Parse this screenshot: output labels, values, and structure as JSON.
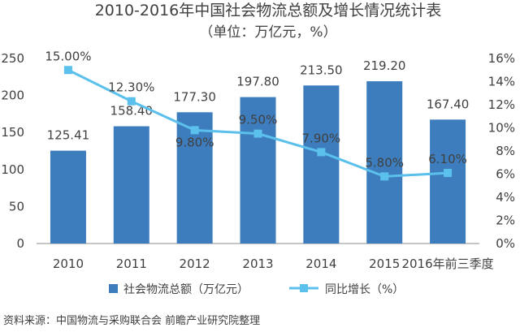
{
  "chart_data": {
    "type": "bar",
    "title": "2010-2016年中国社会物流总额及增长情况统计表",
    "subtitle": "（单位：万亿元，%）",
    "categories": [
      "2010",
      "2011",
      "2012",
      "2013",
      "2014",
      "2015",
      "2016年前三季度"
    ],
    "series": [
      {
        "name": "社会物流总额（万亿元）",
        "type": "bar",
        "axis": "left",
        "values": [
          125.41,
          158.4,
          177.3,
          197.8,
          213.5,
          219.2,
          167.4
        ],
        "labels": [
          "125.41",
          "158.40",
          "177.30",
          "197.80",
          "213.50",
          "219.20",
          "167.40"
        ]
      },
      {
        "name": "同比增长（%）",
        "type": "line",
        "axis": "right",
        "values": [
          15.0,
          12.3,
          9.8,
          9.5,
          7.9,
          5.8,
          6.1
        ],
        "labels": [
          "15.00%",
          "12.30%",
          "9.80%",
          "9.50%",
          "7.90%",
          "5.80%",
          "6.10%"
        ]
      }
    ],
    "ylim_left": [
      0,
      250
    ],
    "yticks_left": [
      "0",
      "50",
      "100",
      "150",
      "200",
      "250"
    ],
    "ylim_right": [
      0,
      16
    ],
    "yticks_right": [
      "0%",
      "2%",
      "4%",
      "6%",
      "8%",
      "10%",
      "12%",
      "14%",
      "16%"
    ],
    "grid": false,
    "legend": "bottom",
    "colors": {
      "bar": "#3d7dbd",
      "line": "#5bc0eb"
    }
  },
  "source": "资料来源：中国物流与采购联合会 前瞻产业研究院整理"
}
